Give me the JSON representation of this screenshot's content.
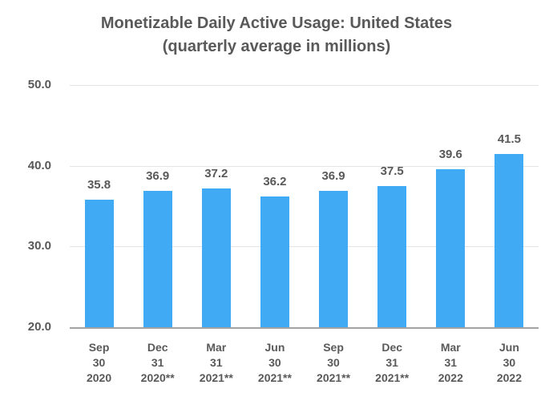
{
  "chart_data": {
    "type": "bar",
    "title_line1": "Monetizable Daily Active Usage: United States",
    "title_line2": "(quarterly average in millions)",
    "categories": [
      [
        "Sep",
        "30",
        "2020"
      ],
      [
        "Dec",
        "31",
        "2020**"
      ],
      [
        "Mar",
        "31",
        "2021**"
      ],
      [
        "Jun",
        "30",
        "2021**"
      ],
      [
        "Sep",
        "30",
        "2021**"
      ],
      [
        "Dec",
        "31",
        "2021**"
      ],
      [
        "Mar",
        "31",
        "2022"
      ],
      [
        "Jun",
        "30",
        "2022"
      ]
    ],
    "values": [
      35.8,
      36.9,
      37.2,
      36.2,
      36.9,
      37.5,
      39.6,
      41.5
    ],
    "value_labels": [
      "35.8",
      "36.9",
      "37.2",
      "36.2",
      "36.9",
      "37.5",
      "39.6",
      "41.5"
    ],
    "xlabel": "",
    "ylabel": "",
    "ylim": [
      20.0,
      50.0
    ],
    "y_ticks": [
      {
        "label": "50.0",
        "value": 50.0
      },
      {
        "label": "40.0",
        "value": 40.0
      },
      {
        "label": "30.0",
        "value": 30.0
      },
      {
        "label": "20.0",
        "value": 20.0
      }
    ],
    "grid": "horizontal",
    "legend_position": "none",
    "colors": {
      "bar": "#41aaf5",
      "gridline": "#e4e4e4",
      "axis_line": "#a3a3a3",
      "text": "#595959"
    }
  }
}
